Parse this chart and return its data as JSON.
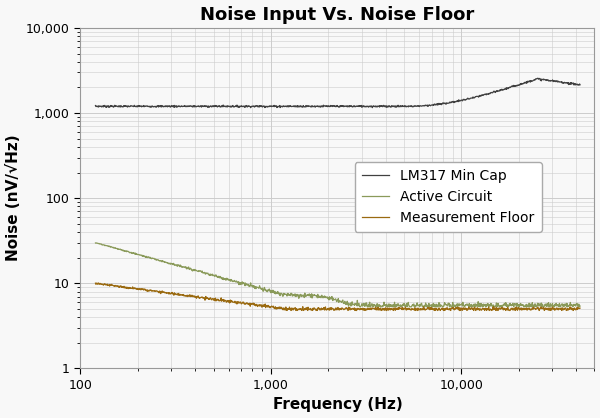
{
  "title": "Noise Input Vs. Noise Floor",
  "xlabel": "Frequency (Hz)",
  "ylabel": "Noise (nV/√Hz)",
  "xlim": [
    100,
    50000
  ],
  "ylim": [
    1,
    10000
  ],
  "legend_labels": [
    "LM317 Min Cap",
    "Active Circuit",
    "Measurement Floor"
  ],
  "line_colors": [
    "#404040",
    "#8a9a5a",
    "#9a6a10"
  ],
  "background_color": "#f8f8f8",
  "grid_color": "#cccccc",
  "title_fontsize": 13,
  "label_fontsize": 11,
  "legend_fontsize": 10
}
